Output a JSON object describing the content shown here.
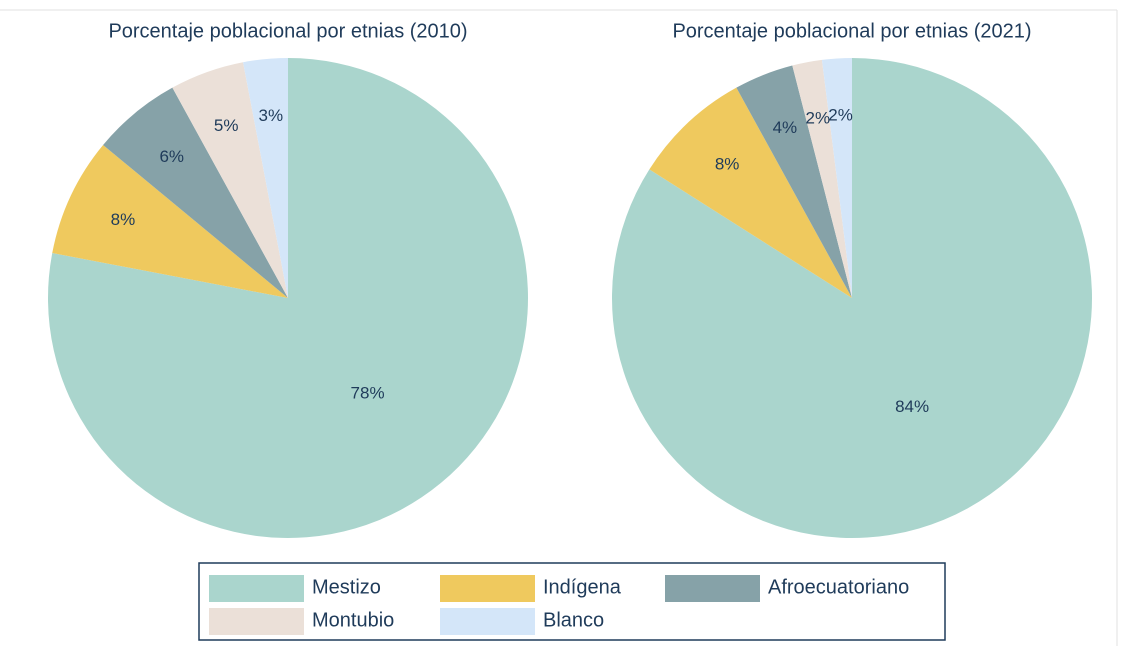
{
  "chart_data": [
    {
      "type": "pie",
      "title": "Porcentaje poblacional por etnias (2010)",
      "categories": [
        "Mestizo",
        "Indígena",
        "Afroecuatoriano",
        "Montubio",
        "Blanco"
      ],
      "values": [
        78,
        8,
        6,
        5,
        3
      ],
      "value_labels": [
        "78%",
        "8%",
        "6%",
        "5%",
        "3%"
      ],
      "colors": [
        "#aad5cd",
        "#efc95e",
        "#86a2a8",
        "#ebe0d8",
        "#d4e6f9"
      ]
    },
    {
      "type": "pie",
      "title": "Porcentaje poblacional por etnias (2021)",
      "categories": [
        "Mestizo",
        "Indígena",
        "Afroecuatoriano",
        "Montubio",
        "Blanco"
      ],
      "values": [
        84,
        8,
        4,
        2,
        2
      ],
      "value_labels": [
        "84%",
        "8%",
        "4%",
        "2%",
        "2%"
      ],
      "colors": [
        "#aad5cd",
        "#efc95e",
        "#86a2a8",
        "#ebe0d8",
        "#d4e6f9"
      ]
    }
  ]
}
